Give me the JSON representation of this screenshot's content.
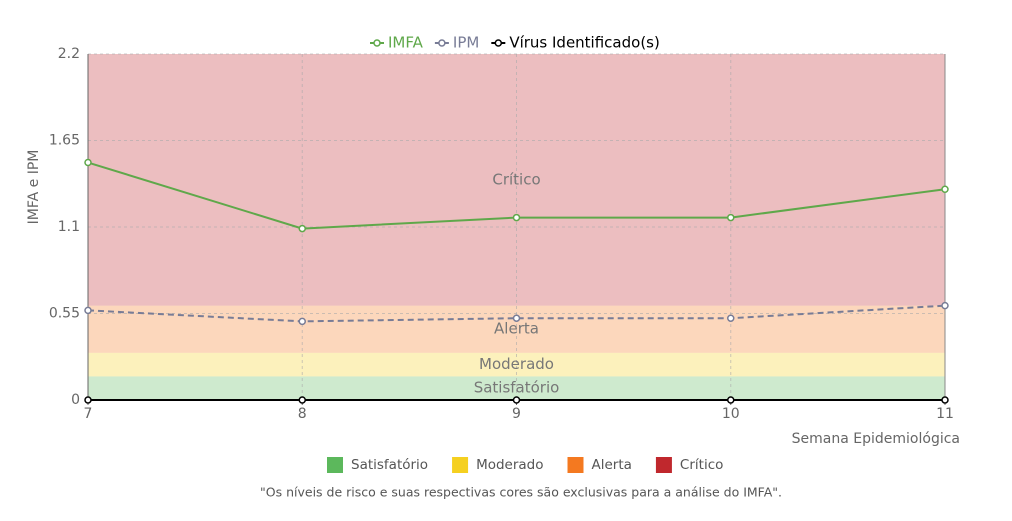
{
  "chart_data": {
    "type": "line",
    "x": [
      7,
      8,
      9,
      10,
      11
    ],
    "xlim": [
      7,
      11
    ],
    "xticks": [
      7,
      8,
      9,
      10,
      11
    ],
    "ylim": [
      0,
      2.2
    ],
    "yticks": [
      0,
      0.55,
      1.1,
      1.65,
      2.2
    ],
    "grid": true,
    "x_label": "Semana Epidemiológica",
    "y_label": "IMFA e IPM",
    "series": [
      {
        "name": "IMFA",
        "color": "#5fa84a",
        "dashed": false,
        "values": [
          1.51,
          1.09,
          1.16,
          1.16,
          1.34
        ]
      },
      {
        "name": "IPM",
        "color": "#787c96",
        "dashed": true,
        "values": [
          0.57,
          0.5,
          0.52,
          0.52,
          0.6
        ]
      },
      {
        "name": "Vírus Identificado(s)",
        "color": "#000000",
        "dashed": false,
        "values": [
          0,
          0,
          0,
          0,
          0
        ]
      }
    ],
    "bands": [
      {
        "name": "Satisfatório",
        "color": "#5cb85c",
        "from": 0,
        "to": 0.15
      },
      {
        "name": "Moderado",
        "color": "#f5d020",
        "from": 0.15,
        "to": 0.3
      },
      {
        "name": "Alerta",
        "color": "#f47920",
        "from": 0.3,
        "to": 0.6
      },
      {
        "name": "Crítico",
        "color": "#c0282d",
        "from": 0.6,
        "to": 2.2
      }
    ],
    "footnote": "\"Os níveis de risco e suas respectivas cores são exclusivas para a análise do IMFA\"."
  }
}
